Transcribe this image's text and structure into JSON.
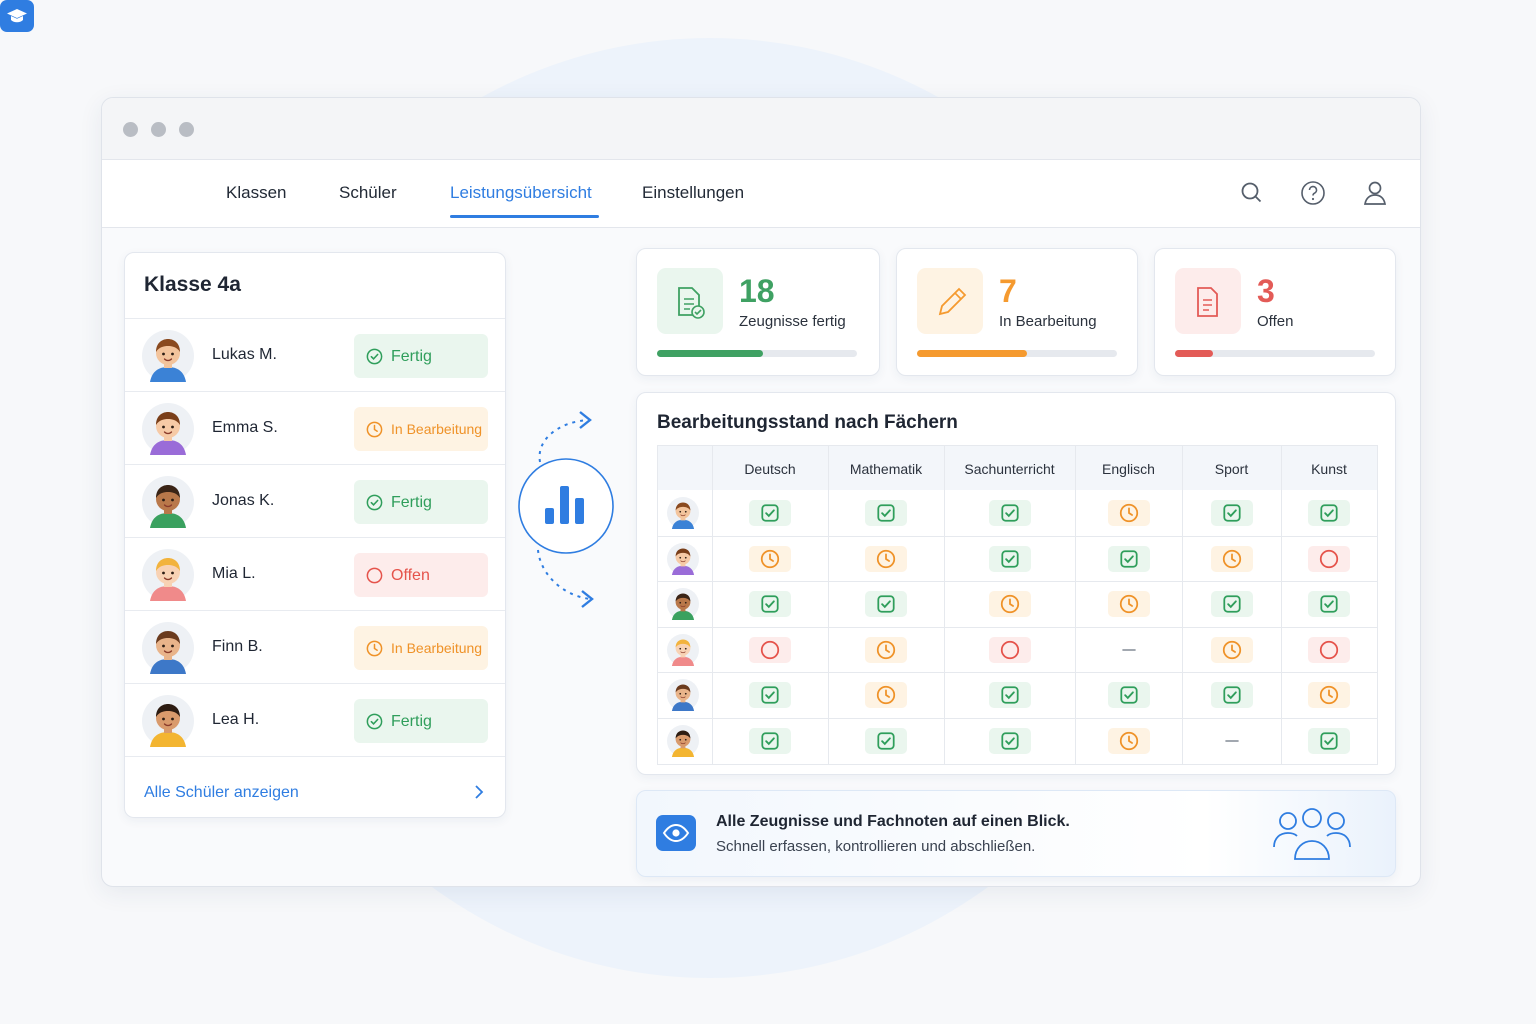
{
  "nav": {
    "items": [
      "Klassen",
      "Schüler",
      "Leistungsübersicht",
      "Einstellungen"
    ],
    "active": 2
  },
  "class_panel": {
    "title": "Klasse 4a",
    "link": "Alle Schüler anzeigen",
    "students": [
      {
        "name": "Lukas M.",
        "status": "Fertig",
        "state": "done",
        "avatar": {
          "skin": "#f3c49c",
          "hair": "#8a4a1f",
          "shirt": "#3b82d6"
        }
      },
      {
        "name": "Emma S.",
        "status": "In Bearbeitung",
        "state": "progress",
        "avatar": {
          "skin": "#f6caa6",
          "hair": "#7a3f1a",
          "shirt": "#9a6cd8"
        }
      },
      {
        "name": "Jonas K.",
        "status": "Fertig",
        "state": "done",
        "avatar": {
          "skin": "#b9784a",
          "hair": "#3a2416",
          "shirt": "#3aa15f"
        }
      },
      {
        "name": "Mia L.",
        "status": "Offen",
        "state": "open",
        "avatar": {
          "skin": "#f8d2b4",
          "hair": "#f2b33d",
          "shirt": "#f08a8a"
        }
      },
      {
        "name": "Finn B.",
        "status": "In Bearbeitung",
        "state": "progress",
        "avatar": {
          "skin": "#e9b48a",
          "hair": "#6b3b1e",
          "shirt": "#3d78c8"
        }
      },
      {
        "name": "Lea H.",
        "status": "Fertig",
        "state": "done",
        "avatar": {
          "skin": "#d99a6c",
          "hair": "#2d1c12",
          "shirt": "#f3b531"
        }
      }
    ]
  },
  "stats": [
    {
      "value": 18,
      "label": "Zeugnisse fertig",
      "progress": 53,
      "state": "done",
      "color": "#3fa163"
    },
    {
      "value": 7,
      "label": "In Bearbeitung",
      "progress": 55,
      "state": "progress",
      "color": "#f59a2f"
    },
    {
      "value": 3,
      "label": "Offen",
      "progress": 19,
      "state": "open",
      "color": "#e35b57"
    }
  ],
  "matrix": {
    "title": "Bearbeitungsstand nach Fächern",
    "columns": [
      "Deutsch",
      "Mathematik",
      "Sachunterricht",
      "Englisch",
      "Sport",
      "Kunst"
    ],
    "rows": [
      [
        "done",
        "done",
        "done",
        "progress",
        "done",
        "done"
      ],
      [
        "progress",
        "progress",
        "done",
        "done",
        "progress",
        "open"
      ],
      [
        "done",
        "done",
        "progress",
        "progress",
        "done",
        "done"
      ],
      [
        "open",
        "progress",
        "open",
        "none",
        "progress",
        "open"
      ],
      [
        "done",
        "progress",
        "done",
        "done",
        "done",
        "progress"
      ],
      [
        "done",
        "done",
        "done",
        "progress",
        "none",
        "done"
      ]
    ]
  },
  "banner": {
    "title": "Alle Zeugnisse und Fachnoten auf einen Blick.",
    "subtitle": "Schnell erfassen, kontrollieren und abschließen."
  }
}
